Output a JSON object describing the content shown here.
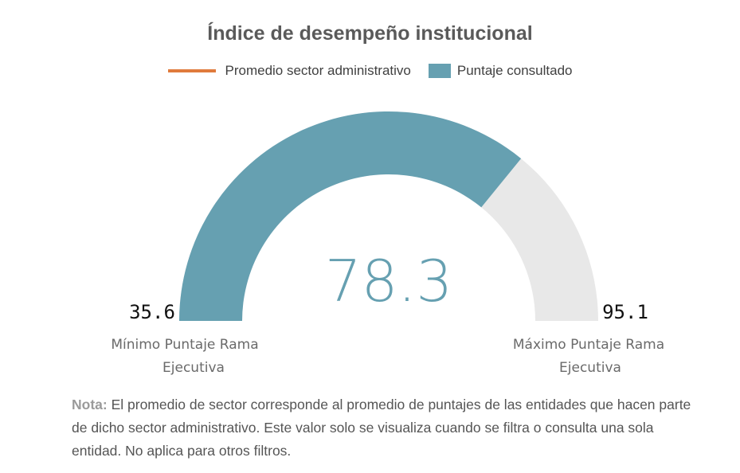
{
  "colors": {
    "gauge_fill": "#66a0b1",
    "gauge_track": "#e8e8e8",
    "average_line": "#e07b3c",
    "value_text": "#66a0b1",
    "title_text": "#5a5a5a"
  },
  "chart_data": {
    "type": "gauge",
    "title": "Índice de desempeño institucional",
    "min": 35.6,
    "max": 95.1,
    "value": 78.3,
    "value_label": "78.3",
    "min_label": "35.6",
    "max_label": "95.1",
    "min_caption_line1": "Mínimo Puntaje Rama",
    "min_caption_line2": "Ejecutiva",
    "max_caption_line1": "Máximo Puntaje Rama",
    "max_caption_line2": "Ejecutiva",
    "legend": [
      {
        "label": "Promedio sector administrativo",
        "marker": "line",
        "color": "#e07b3c"
      },
      {
        "label": "Puntaje consultado",
        "marker": "box",
        "color": "#66a0b1"
      }
    ],
    "legend_placement": "top-center"
  },
  "note": {
    "label": "Nota:",
    "text": "El promedio de sector corresponde al promedio de puntajes de las entidades que hacen parte de dicho sector administrativo. Este valor solo se visualiza cuando se filtra o consulta una sola entidad. No aplica para otros filtros."
  }
}
